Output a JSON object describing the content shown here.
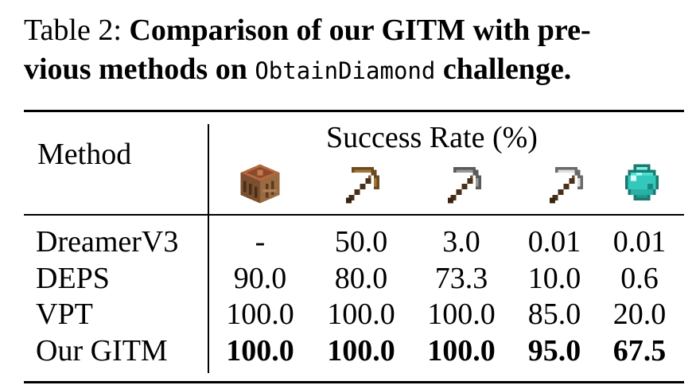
{
  "caption": {
    "label": "Table 2:",
    "title_part1": "Comparison of our GITM with pre-",
    "title_part2": "vious methods on",
    "challenge_name": "ObtainDiamond",
    "title_part3": "challenge."
  },
  "table": {
    "method_header": "Method",
    "success_header": "Success Rate (%)",
    "item_icons": [
      "crafting-table-icon",
      "wooden-pickaxe-icon",
      "stone-pickaxe-icon",
      "iron-pickaxe-icon",
      "diamond-icon"
    ],
    "rows": [
      {
        "method": "DreamerV3",
        "values": [
          "-",
          "50.0",
          "3.0",
          "0.01",
          "0.01"
        ],
        "bold": false
      },
      {
        "method": "DEPS",
        "values": [
          "90.0",
          "80.0",
          "73.3",
          "10.0",
          "0.6"
        ],
        "bold": false
      },
      {
        "method": "VPT",
        "values": [
          "100.0",
          "100.0",
          "100.0",
          "85.0",
          "20.0"
        ],
        "bold": false
      },
      {
        "method": "Our GITM",
        "values": [
          "100.0",
          "100.0",
          "100.0",
          "95.0",
          "67.5"
        ],
        "bold": true
      }
    ]
  }
}
